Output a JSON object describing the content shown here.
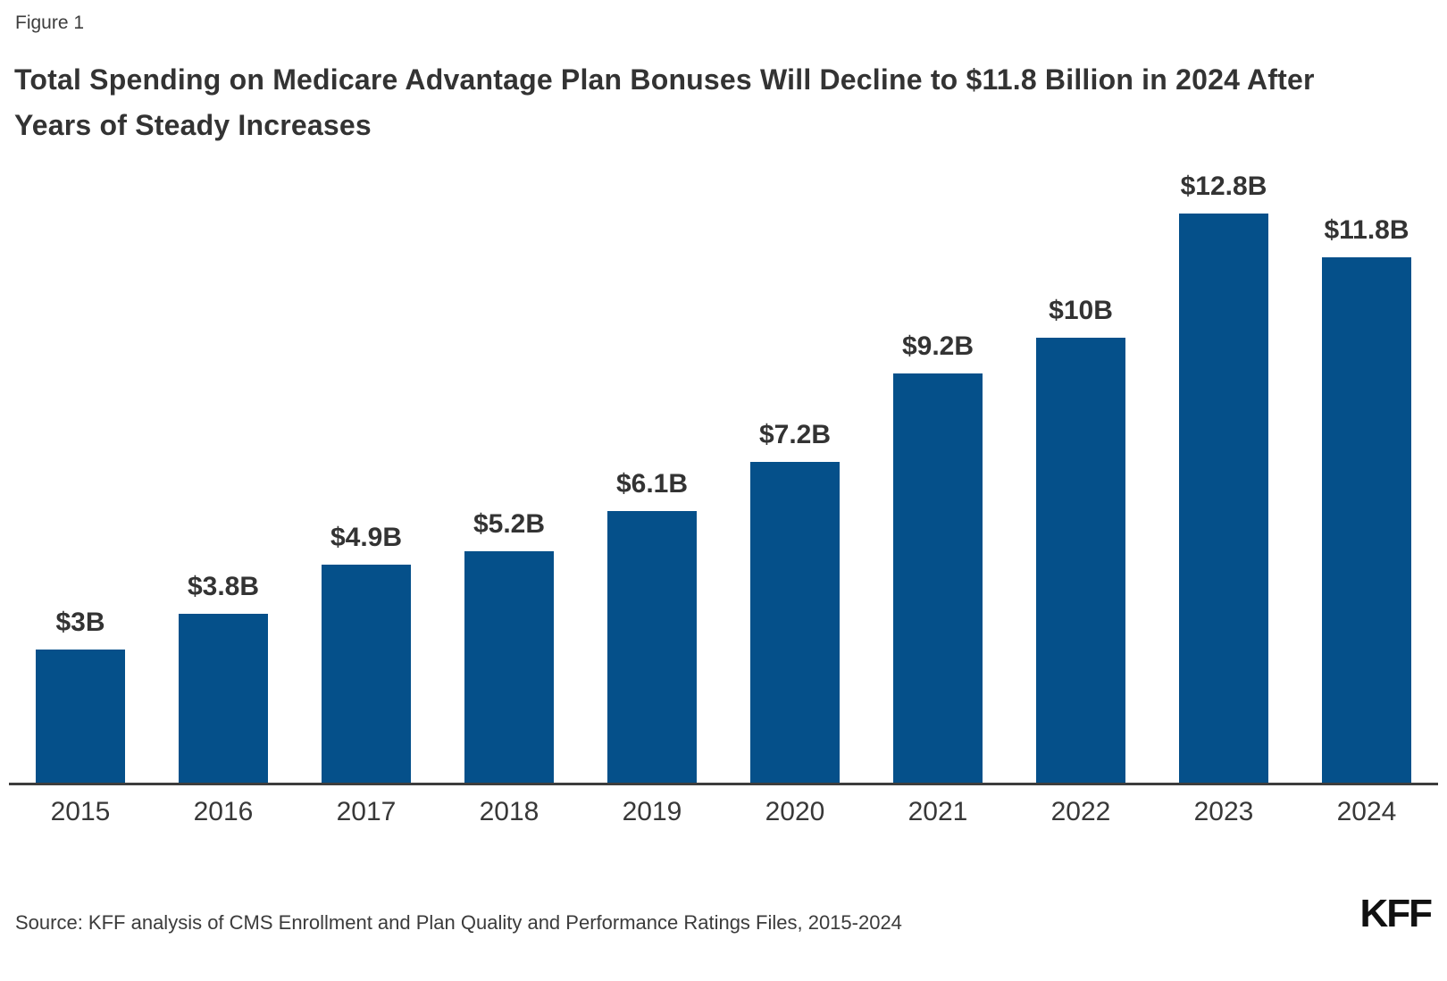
{
  "figure_label": "Figure 1",
  "title": "Total Spending on Medicare Advantage Plan Bonuses Will Decline to $11.8 Billion in 2024 After Years of Steady Increases",
  "chart_data": {
    "type": "bar",
    "categories": [
      "2015",
      "2016",
      "2017",
      "2018",
      "2019",
      "2020",
      "2021",
      "2022",
      "2023",
      "2024"
    ],
    "values": [
      3,
      3.8,
      4.9,
      5.2,
      6.1,
      7.2,
      9.2,
      10,
      12.8,
      11.8
    ],
    "value_labels": [
      "$3B",
      "$3.8B",
      "$4.9B",
      "$5.2B",
      "$6.1B",
      "$7.2B",
      "$9.2B",
      "$10B",
      "$12.8B",
      "$11.8B"
    ],
    "title": "Total Spending on Medicare Advantage Plan Bonuses Will Decline to $11.8 Billion in 2024 After Years of Steady Increases",
    "xlabel": "",
    "ylabel": "",
    "ylim": [
      0,
      13.8
    ],
    "grid": false,
    "legend": "none",
    "y_axis_shown": false,
    "bar_color": "#05508a",
    "axis_color": "#3d3d3d",
    "label_color": "#333333"
  },
  "footer": {
    "source": "Source: KFF analysis of CMS Enrollment and Plan Quality and Performance Ratings Files, 2015-2024",
    "logo": "KFF"
  }
}
